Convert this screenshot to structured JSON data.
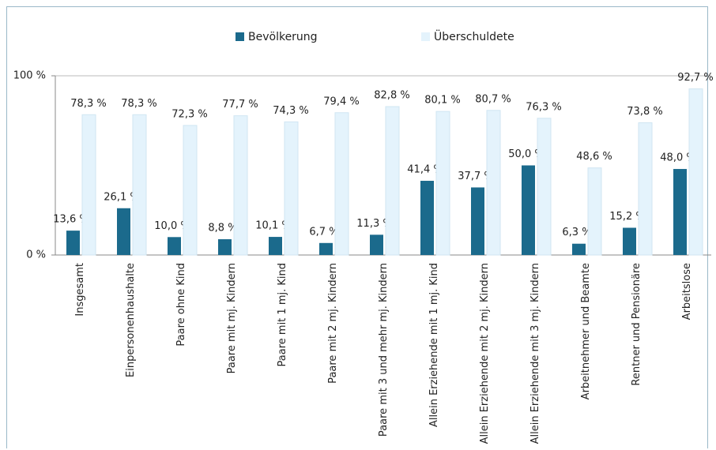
{
  "chart_data": {
    "type": "bar",
    "categories": [
      "Insgesamt",
      "Einpersonenhaushalte",
      "Paare ohne Kind",
      "Paare mit mj. Kindern",
      "Paare mit 1 mj. Kind",
      "Paare mit 2 mj. Kindern",
      "Paare mit 3 und mehr mj. Kindern",
      "Allein Erziehende mit 1 mj. Kind",
      "Allein Erziehende mit 2 mj. Kindern",
      "Allein Erziehende mit 3 mj. Kindern",
      "Arbeitnehmer und Beamte",
      "Rentner und Pensionäre",
      "Arbeitslose"
    ],
    "series": [
      {
        "name": "Bevölkerung",
        "color": "#1b6a8c",
        "values": [
          13.6,
          26.1,
          10.0,
          8.8,
          10.1,
          6.7,
          11.3,
          41.4,
          37.7,
          50.0,
          6.3,
          15.2,
          48.0
        ],
        "value_labels": [
          "13,6 %",
          "26,1 %",
          "10,0 %",
          "8,8 %",
          "10,1 %",
          "6,7 %",
          "11,3 %",
          "41,4 %",
          "37,7 %",
          "50,0 %",
          "6,3 %",
          "15,2 %",
          "48,0 %"
        ]
      },
      {
        "name": "Überschuldete",
        "color": "#e4f3fc",
        "values": [
          78.3,
          78.3,
          72.3,
          77.7,
          74.3,
          79.4,
          82.8,
          80.1,
          80.7,
          76.3,
          48.6,
          73.8,
          92.7
        ],
        "value_labels": [
          "78,3 %",
          "78,3 %",
          "72,3 %",
          "77,7 %",
          "74,3 %",
          "79,4 %",
          "82,8 %",
          "80,1 %",
          "80,7 %",
          "76,3 %",
          "48,6 %",
          "73,8 %",
          "92,7 %"
        ]
      }
    ],
    "ylim": [
      0,
      100
    ],
    "yticks": [
      {
        "value": 0,
        "label": "0 %"
      },
      {
        "value": 100,
        "label": "100 %"
      }
    ],
    "grid": true,
    "legend": "top"
  }
}
